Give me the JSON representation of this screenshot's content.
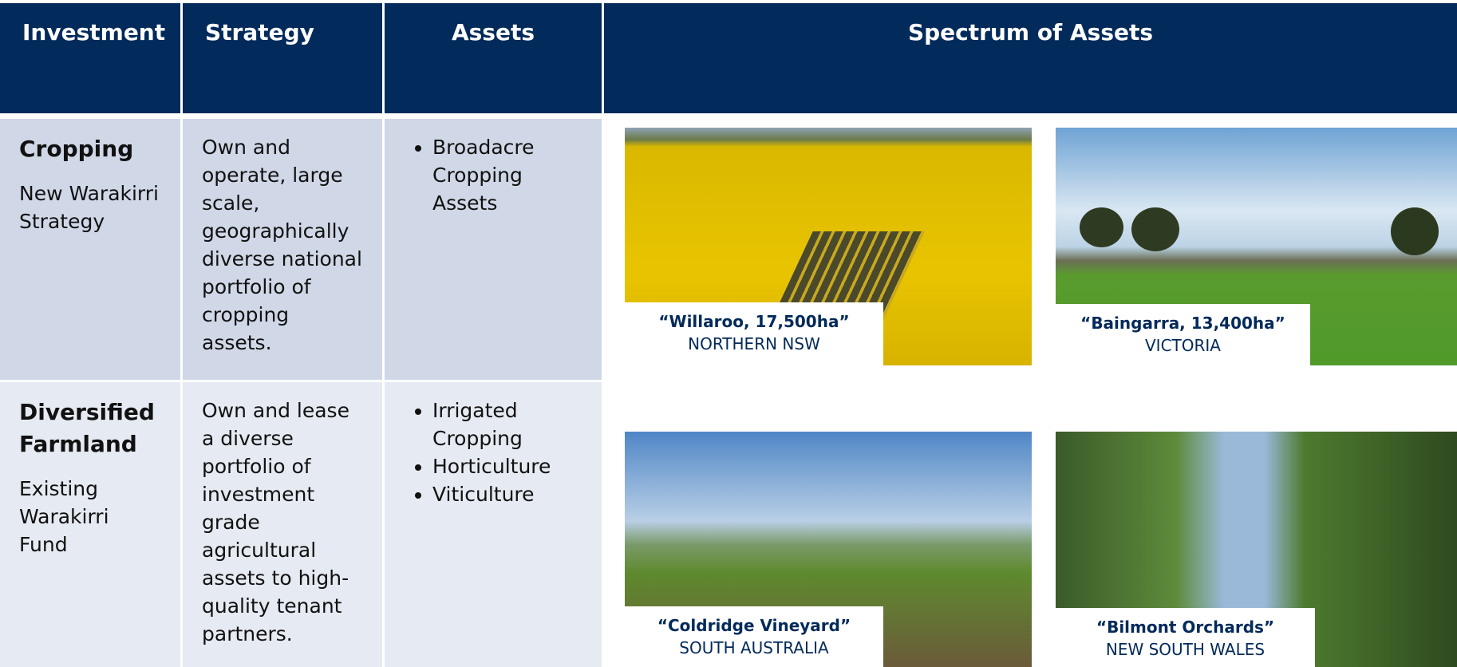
{
  "header": [
    "Investment",
    "Strategy",
    "Assets",
    "Spectrum of Assets"
  ],
  "rows": [
    {
      "title": "Cropping",
      "subtitle": "New Warakirri Strategy",
      "strategy": "Own and operate, large scale, geographically diverse national portfolio of cropping assets.",
      "assets": [
        "Broadacre Cropping Assets"
      ]
    },
    {
      "title": "Diversified Farmland",
      "subtitle": "Existing Warakirri Fund",
      "strategy": "Own and lease a diverse portfolio of investment grade agricultural assets to high-quality tenant partners.",
      "assets": [
        "Irrigated Cropping",
        "Horticulture",
        "Viticulture"
      ]
    }
  ],
  "gallery": [
    {
      "name": "“Willaroo, 17,500ha”",
      "location": "NORTHERN NSW"
    },
    {
      "name": "“Baingarra, 13,400ha”",
      "location": "VICTORIA"
    },
    {
      "name": "“Coldridge Vineyard”",
      "location": "SOUTH AUSTRALIA"
    },
    {
      "name": "“Bilmont Orchards”",
      "location": "NEW SOUTH WALES"
    }
  ]
}
